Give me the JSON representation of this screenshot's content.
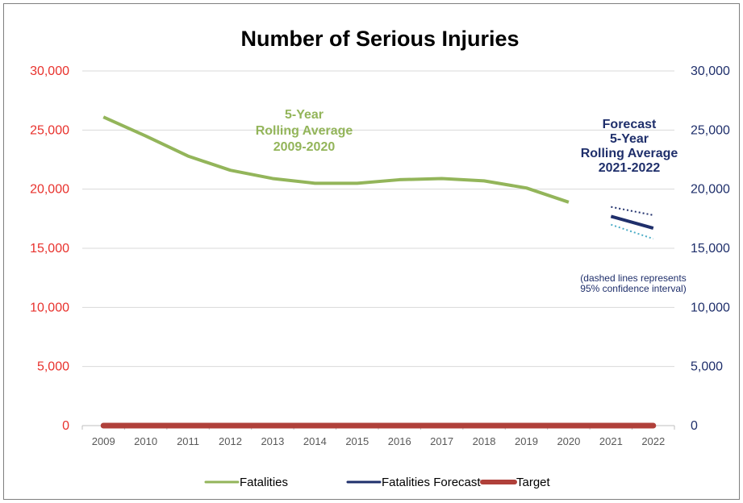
{
  "chart_data": {
    "type": "line",
    "title": "Number of Serious Injuries",
    "x": [
      "2009",
      "2010",
      "2011",
      "2012",
      "2013",
      "2014",
      "2015",
      "2016",
      "2017",
      "2018",
      "2019",
      "2020",
      "2021",
      "2022"
    ],
    "y_left": {
      "ticks": [
        "0",
        "5,000",
        "10,000",
        "15,000",
        "20,000",
        "25,000",
        "30,000"
      ],
      "range": [
        0,
        30000
      ],
      "color": "#e8322d"
    },
    "y_right": {
      "ticks": [
        "0",
        "5,000",
        "10,000",
        "15,000",
        "20,000",
        "25,000",
        "30,000"
      ],
      "range": [
        0,
        30000
      ],
      "color": "#1f2f6b"
    },
    "grid": true,
    "legend_position": "bottom",
    "series": [
      {
        "name": "Fatalities",
        "color": "#93b55a",
        "x": [
          "2009",
          "2010",
          "2011",
          "2012",
          "2013",
          "2014",
          "2015",
          "2016",
          "2017",
          "2018",
          "2019",
          "2020"
        ],
        "values": [
          26100,
          24500,
          22800,
          21600,
          20900,
          20500,
          20500,
          20800,
          20900,
          20700,
          20100,
          18900
        ]
      },
      {
        "name": "Fatalities Forecast",
        "color": "#1f2f6b",
        "x": [
          "2021",
          "2022"
        ],
        "values": [
          17700,
          16700
        ],
        "upper": [
          18500,
          17800
        ],
        "lower": [
          17000,
          15800
        ],
        "upper_color": "#1f2f6b",
        "lower_color": "#4bacc6"
      },
      {
        "name": "Target",
        "color": "#b0403a",
        "x": [
          "2009",
          "2010",
          "2011",
          "2012",
          "2013",
          "2014",
          "2015",
          "2016",
          "2017",
          "2018",
          "2019",
          "2020",
          "2021",
          "2022"
        ],
        "values": [
          0,
          0,
          0,
          0,
          0,
          0,
          0,
          0,
          0,
          0,
          0,
          0,
          0,
          0
        ]
      }
    ],
    "annotations": {
      "historical": [
        "5-Year",
        "Rolling Average",
        "2009-2020"
      ],
      "forecast": [
        "Forecast",
        "5-Year",
        "Rolling Average",
        "2021-2022"
      ],
      "note": [
        "(dashed lines represents",
        "95% confidence interval)"
      ]
    }
  }
}
